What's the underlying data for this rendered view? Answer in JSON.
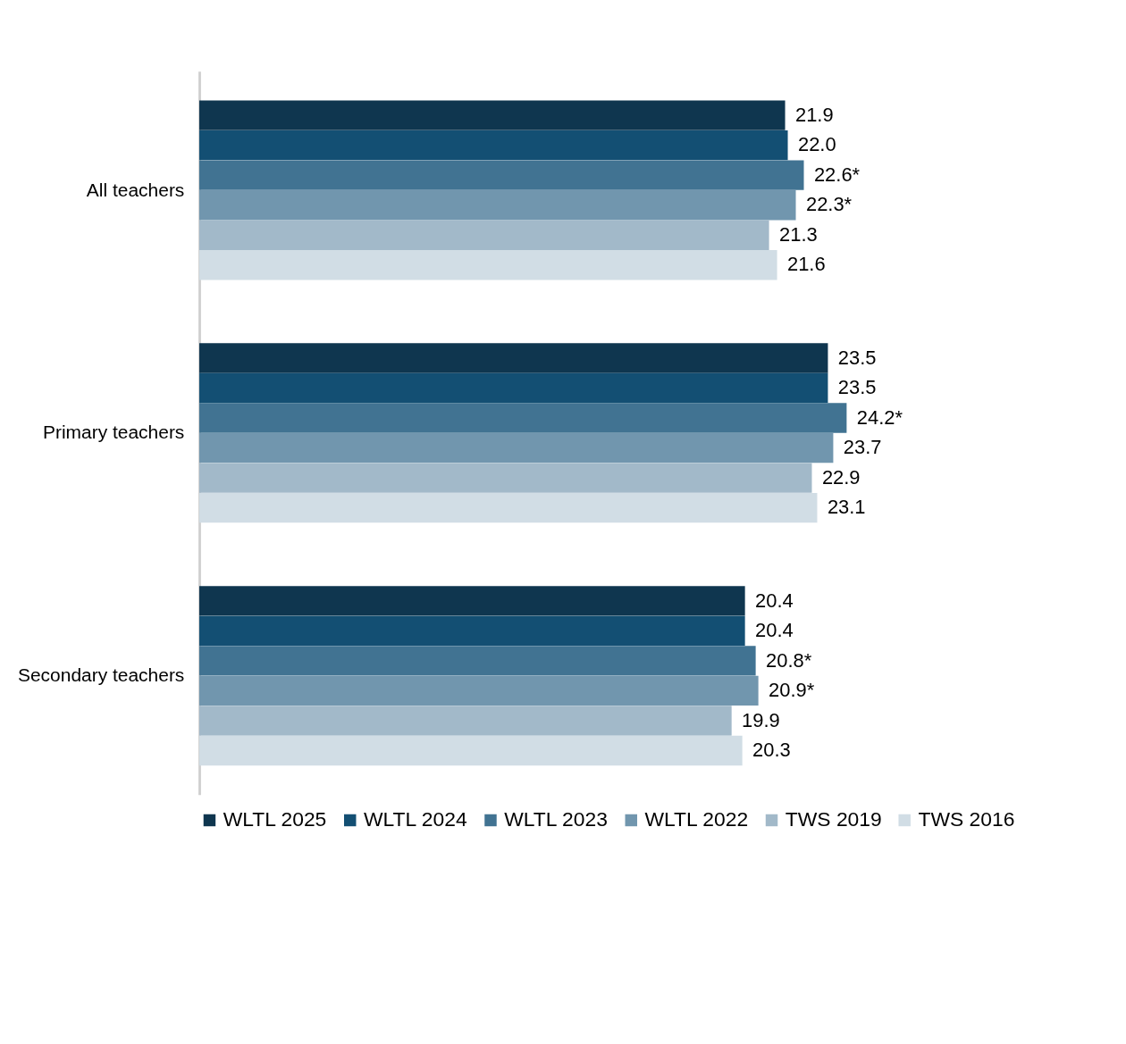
{
  "chart_data": {
    "type": "bar",
    "orientation": "horizontal",
    "categories": [
      "All teachers",
      "Primary teachers",
      "Secondary teachers"
    ],
    "series": [
      {
        "name": "WLTL 2025",
        "color": "#0f364f",
        "values": [
          21.9,
          23.5,
          20.4
        ],
        "value_labels": [
          "21.9",
          "23.5",
          "20.4"
        ]
      },
      {
        "name": "WLTL 2024",
        "color": "#134f73",
        "values": [
          22.0,
          23.5,
          20.4
        ],
        "value_labels": [
          "22.0",
          "23.5",
          "20.4"
        ]
      },
      {
        "name": "WLTL 2023",
        "color": "#417392",
        "values": [
          22.6,
          24.2,
          20.8
        ],
        "value_labels": [
          "22.6*",
          "24.2*",
          "20.8*"
        ]
      },
      {
        "name": "WLTL 2022",
        "color": "#7196ae",
        "values": [
          22.3,
          23.7,
          20.9
        ],
        "value_labels": [
          "22.3*",
          "23.7",
          "20.9*"
        ]
      },
      {
        "name": "TWS 2019",
        "color": "#a2b9c9",
        "values": [
          21.3,
          22.9,
          19.9
        ],
        "value_labels": [
          "21.3",
          "22.9",
          "19.9"
        ]
      },
      {
        "name": "TWS 2016",
        "color": "#d1dde5",
        "values": [
          21.6,
          23.1,
          20.3
        ],
        "value_labels": [
          "21.6",
          "23.1",
          "20.3"
        ]
      }
    ],
    "tick_labels": "y",
    "grid": false,
    "legend": "bottom"
  }
}
